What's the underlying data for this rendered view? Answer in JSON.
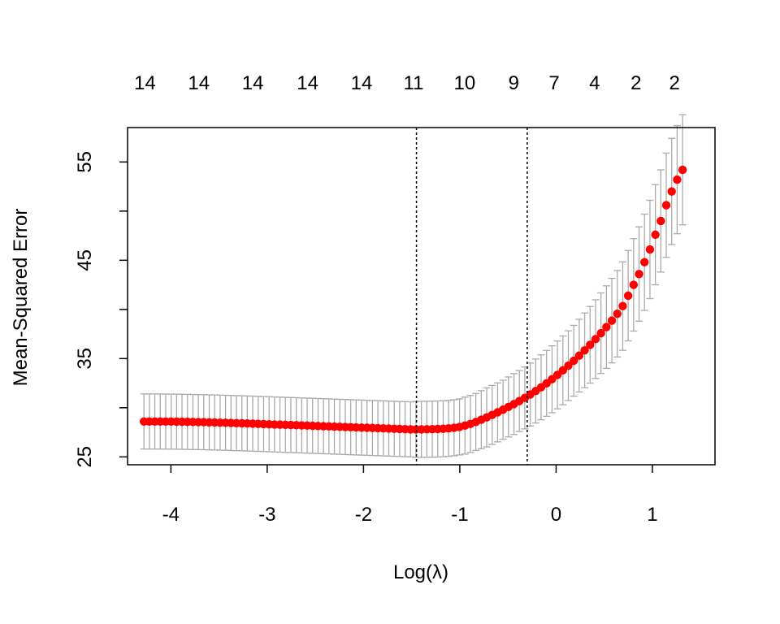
{
  "chart_data": {
    "type": "scatter",
    "title": "",
    "xlabel": "Log(λ)",
    "ylabel": "Mean-Squared Error",
    "xlim": [
      -4.45,
      1.65
    ],
    "ylim": [
      24.2,
      58.5
    ],
    "x_ticks": [
      -4,
      -3,
      -2,
      -1,
      0,
      1
    ],
    "x_tick_labels": [
      "-4",
      "-3",
      "-2",
      "-1",
      "0",
      "1"
    ],
    "y_ticks": [
      25,
      30,
      35,
      40,
      45,
      50,
      55
    ],
    "y_tick_labels": [
      "25",
      "",
      "35",
      "",
      "45",
      "",
      "55"
    ],
    "top_axis": {
      "x": [
        -4.27,
        -3.71,
        -3.15,
        -2.58,
        -2.02,
        -1.48,
        -0.95,
        -0.44,
        -0.02,
        0.4,
        0.83,
        1.23
      ],
      "labels": [
        "14",
        "14",
        "14",
        "14",
        "14",
        "11",
        "10",
        "9",
        "7",
        "4",
        "2",
        "2"
      ]
    },
    "vlines": [
      -1.45,
      -0.3
    ],
    "point_color": "#ff0000",
    "errorbar_color": "#aaaaaa",
    "series": [
      {
        "x_start": -4.28,
        "x_step": 0.0565,
        "count": 100,
        "values": [
          28.6,
          28.6,
          28.6,
          28.6,
          28.59,
          28.59,
          28.58,
          28.57,
          28.56,
          28.55,
          28.54,
          28.53,
          28.51,
          28.5,
          28.48,
          28.47,
          28.45,
          28.43,
          28.42,
          28.4,
          28.38,
          28.36,
          28.34,
          28.32,
          28.3,
          28.28,
          28.26,
          28.24,
          28.22,
          28.2,
          28.18,
          28.16,
          28.14,
          28.12,
          28.1,
          28.08,
          28.06,
          28.04,
          28.02,
          28.0,
          27.98,
          27.96,
          27.94,
          27.92,
          27.9,
          27.88,
          27.86,
          27.84,
          27.82,
          27.8,
          27.79,
          27.8,
          27.81,
          27.82,
          27.84,
          27.86,
          27.9,
          27.96,
          28.05,
          28.18,
          28.35,
          28.55,
          28.78,
          29.02,
          29.27,
          29.53,
          29.8,
          30.08,
          30.37,
          30.68,
          31.0,
          31.34,
          31.7,
          32.08,
          32.48,
          32.9,
          33.34,
          33.8,
          34.28,
          34.78,
          35.3,
          35.84,
          36.4,
          36.98,
          37.58,
          38.2,
          38.86,
          39.56,
          40.34,
          41.4,
          42.5,
          43.6,
          44.8,
          46.1,
          47.6,
          49.0,
          50.6,
          52.0,
          53.2,
          54.2
        ],
        "se": [
          2.8,
          2.8,
          2.8,
          2.8,
          2.8,
          2.8,
          2.8,
          2.8,
          2.8,
          2.8,
          2.8,
          2.8,
          2.8,
          2.8,
          2.8,
          2.8,
          2.8,
          2.8,
          2.8,
          2.8,
          2.8,
          2.8,
          2.8,
          2.8,
          2.8,
          2.8,
          2.8,
          2.8,
          2.8,
          2.8,
          2.8,
          2.8,
          2.8,
          2.8,
          2.8,
          2.8,
          2.8,
          2.8,
          2.8,
          2.8,
          2.8,
          2.8,
          2.8,
          2.8,
          2.8,
          2.8,
          2.8,
          2.8,
          2.8,
          2.8,
          2.85,
          2.85,
          2.85,
          2.85,
          2.85,
          2.85,
          2.85,
          2.85,
          2.85,
          2.9,
          2.9,
          2.9,
          2.95,
          3.0,
          3.0,
          3.0,
          3.0,
          3.05,
          3.1,
          3.1,
          3.15,
          3.2,
          3.25,
          3.3,
          3.35,
          3.4,
          3.45,
          3.5,
          3.55,
          3.6,
          3.7,
          3.8,
          3.9,
          4.0,
          4.1,
          4.2,
          4.3,
          4.4,
          4.5,
          4.6,
          4.7,
          4.8,
          4.9,
          5.0,
          5.1,
          5.2,
          5.3,
          5.4,
          5.5,
          5.6
        ]
      }
    ]
  }
}
